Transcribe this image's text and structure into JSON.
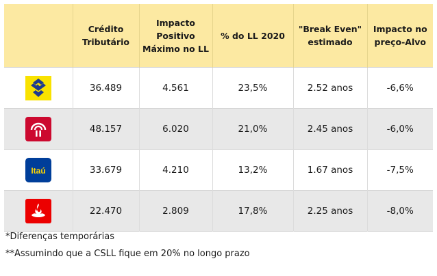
{
  "header": {
    "logo_col": "",
    "col1": "Crédito\nTributário",
    "col2": "Impacto\nPositivo\nMáximo no LL",
    "col3": "% do LL 2020",
    "col4": "\"Break Even\"\nestimado",
    "col5": "Impacto no\npreço-Alvo"
  },
  "rows": [
    {
      "logo": "banco-do-brasil-logo",
      "credito": "36.489",
      "impacto": "4.561",
      "pct": "23,5%",
      "break_even": "2.52 anos",
      "preco_alvo": "-6,6%"
    },
    {
      "logo": "bradesco-logo",
      "credito": "48.157",
      "impacto": "6.020",
      "pct": "21,0%",
      "break_even": "2.45 anos",
      "preco_alvo": "-6,0%"
    },
    {
      "logo": "itau-logo",
      "logo_text": "Itaú",
      "credito": "33.679",
      "impacto": "4.210",
      "pct": "13,2%",
      "break_even": "1.67 anos",
      "preco_alvo": "-7,5%"
    },
    {
      "logo": "santander-logo",
      "credito": "22.470",
      "impacto": "2.809",
      "pct": "17,8%",
      "break_even": "2.25 anos",
      "preco_alvo": "-8,0%"
    }
  ],
  "footnotes": {
    "note1": "*Diferenças temporárias",
    "note2": "**Assumindo que a CSLL fique em 20% no longo prazo"
  },
  "colors": {
    "header_bg": "#fce9a2",
    "row_alt_bg": "#e8e8e8",
    "bb_yellow": "#f9e200",
    "bb_blue": "#1d3a8f",
    "bradesco_red": "#cc092f",
    "itau_blue": "#003e9a",
    "itau_orange": "#ec7000",
    "santander_red": "#ec0000"
  }
}
